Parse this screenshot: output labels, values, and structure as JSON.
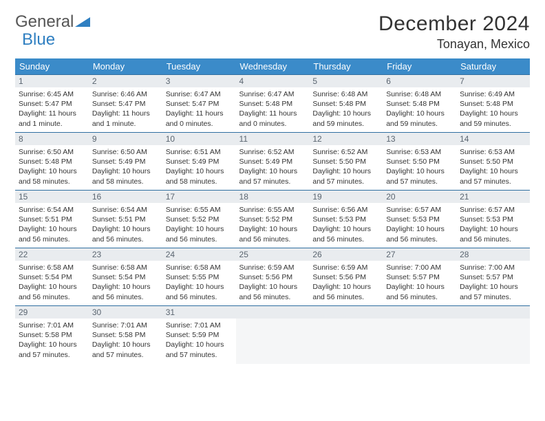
{
  "logo": {
    "text1": "General",
    "text2": "Blue"
  },
  "title": "December 2024",
  "location": "Tonayan, Mexico",
  "weekdays": [
    "Sunday",
    "Monday",
    "Tuesday",
    "Wednesday",
    "Thursday",
    "Friday",
    "Saturday"
  ],
  "colors": {
    "header_bg": "#3b8bc9",
    "header_text": "#ffffff",
    "daynum_bg": "#e9ecef",
    "border": "#2f6fa0",
    "logo_blue": "#2f7fc1"
  },
  "days": [
    {
      "n": "1",
      "sunrise": "6:45 AM",
      "sunset": "5:47 PM",
      "daylight": "11 hours and 1 minute."
    },
    {
      "n": "2",
      "sunrise": "6:46 AM",
      "sunset": "5:47 PM",
      "daylight": "11 hours and 1 minute."
    },
    {
      "n": "3",
      "sunrise": "6:47 AM",
      "sunset": "5:47 PM",
      "daylight": "11 hours and 0 minutes."
    },
    {
      "n": "4",
      "sunrise": "6:47 AM",
      "sunset": "5:48 PM",
      "daylight": "11 hours and 0 minutes."
    },
    {
      "n": "5",
      "sunrise": "6:48 AM",
      "sunset": "5:48 PM",
      "daylight": "10 hours and 59 minutes."
    },
    {
      "n": "6",
      "sunrise": "6:48 AM",
      "sunset": "5:48 PM",
      "daylight": "10 hours and 59 minutes."
    },
    {
      "n": "7",
      "sunrise": "6:49 AM",
      "sunset": "5:48 PM",
      "daylight": "10 hours and 59 minutes."
    },
    {
      "n": "8",
      "sunrise": "6:50 AM",
      "sunset": "5:48 PM",
      "daylight": "10 hours and 58 minutes."
    },
    {
      "n": "9",
      "sunrise": "6:50 AM",
      "sunset": "5:49 PM",
      "daylight": "10 hours and 58 minutes."
    },
    {
      "n": "10",
      "sunrise": "6:51 AM",
      "sunset": "5:49 PM",
      "daylight": "10 hours and 58 minutes."
    },
    {
      "n": "11",
      "sunrise": "6:52 AM",
      "sunset": "5:49 PM",
      "daylight": "10 hours and 57 minutes."
    },
    {
      "n": "12",
      "sunrise": "6:52 AM",
      "sunset": "5:50 PM",
      "daylight": "10 hours and 57 minutes."
    },
    {
      "n": "13",
      "sunrise": "6:53 AM",
      "sunset": "5:50 PM",
      "daylight": "10 hours and 57 minutes."
    },
    {
      "n": "14",
      "sunrise": "6:53 AM",
      "sunset": "5:50 PM",
      "daylight": "10 hours and 57 minutes."
    },
    {
      "n": "15",
      "sunrise": "6:54 AM",
      "sunset": "5:51 PM",
      "daylight": "10 hours and 56 minutes."
    },
    {
      "n": "16",
      "sunrise": "6:54 AM",
      "sunset": "5:51 PM",
      "daylight": "10 hours and 56 minutes."
    },
    {
      "n": "17",
      "sunrise": "6:55 AM",
      "sunset": "5:52 PM",
      "daylight": "10 hours and 56 minutes."
    },
    {
      "n": "18",
      "sunrise": "6:55 AM",
      "sunset": "5:52 PM",
      "daylight": "10 hours and 56 minutes."
    },
    {
      "n": "19",
      "sunrise": "6:56 AM",
      "sunset": "5:53 PM",
      "daylight": "10 hours and 56 minutes."
    },
    {
      "n": "20",
      "sunrise": "6:57 AM",
      "sunset": "5:53 PM",
      "daylight": "10 hours and 56 minutes."
    },
    {
      "n": "21",
      "sunrise": "6:57 AM",
      "sunset": "5:53 PM",
      "daylight": "10 hours and 56 minutes."
    },
    {
      "n": "22",
      "sunrise": "6:58 AM",
      "sunset": "5:54 PM",
      "daylight": "10 hours and 56 minutes."
    },
    {
      "n": "23",
      "sunrise": "6:58 AM",
      "sunset": "5:54 PM",
      "daylight": "10 hours and 56 minutes."
    },
    {
      "n": "24",
      "sunrise": "6:58 AM",
      "sunset": "5:55 PM",
      "daylight": "10 hours and 56 minutes."
    },
    {
      "n": "25",
      "sunrise": "6:59 AM",
      "sunset": "5:56 PM",
      "daylight": "10 hours and 56 minutes."
    },
    {
      "n": "26",
      "sunrise": "6:59 AM",
      "sunset": "5:56 PM",
      "daylight": "10 hours and 56 minutes."
    },
    {
      "n": "27",
      "sunrise": "7:00 AM",
      "sunset": "5:57 PM",
      "daylight": "10 hours and 56 minutes."
    },
    {
      "n": "28",
      "sunrise": "7:00 AM",
      "sunset": "5:57 PM",
      "daylight": "10 hours and 57 minutes."
    },
    {
      "n": "29",
      "sunrise": "7:01 AM",
      "sunset": "5:58 PM",
      "daylight": "10 hours and 57 minutes."
    },
    {
      "n": "30",
      "sunrise": "7:01 AM",
      "sunset": "5:58 PM",
      "daylight": "10 hours and 57 minutes."
    },
    {
      "n": "31",
      "sunrise": "7:01 AM",
      "sunset": "5:59 PM",
      "daylight": "10 hours and 57 minutes."
    }
  ],
  "labels": {
    "sunrise": "Sunrise:",
    "sunset": "Sunset:",
    "daylight": "Daylight:"
  },
  "layout": {
    "start_weekday": 0,
    "total_cells": 35
  }
}
